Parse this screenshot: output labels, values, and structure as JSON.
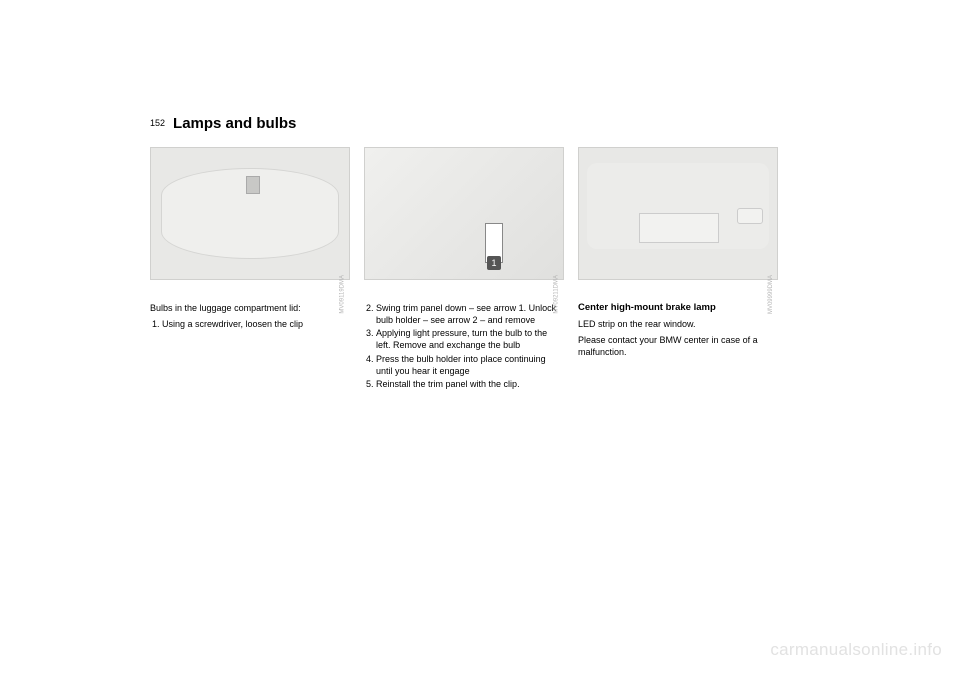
{
  "page_number": "152",
  "title": "Lamps and bulbs",
  "col1": {
    "fig_code": "MV09119DMA",
    "intro": "Bulbs in the luggage compartment lid:",
    "step1": "Using a screwdriver, loosen the clip"
  },
  "col2": {
    "fig_code": "MV09211DMA",
    "step2": "Swing trim panel down – see arrow 1. Unlock bulb holder – see arrow 2 – and remove",
    "step3": "Applying light pressure, turn the bulb to the left. Remove and exchange the bulb",
    "step4": "Press the bulb holder into place continuing until you hear it engage",
    "step5": "Reinstall the trim panel with the clip.",
    "badge": "1"
  },
  "col3": {
    "fig_code": "MV09999DMA",
    "heading": "Center high-mount brake lamp",
    "line1": "LED strip on the rear window.",
    "line2": "Please contact your BMW center in case of a malfunction."
  },
  "watermark": "carmanualsonline.info"
}
